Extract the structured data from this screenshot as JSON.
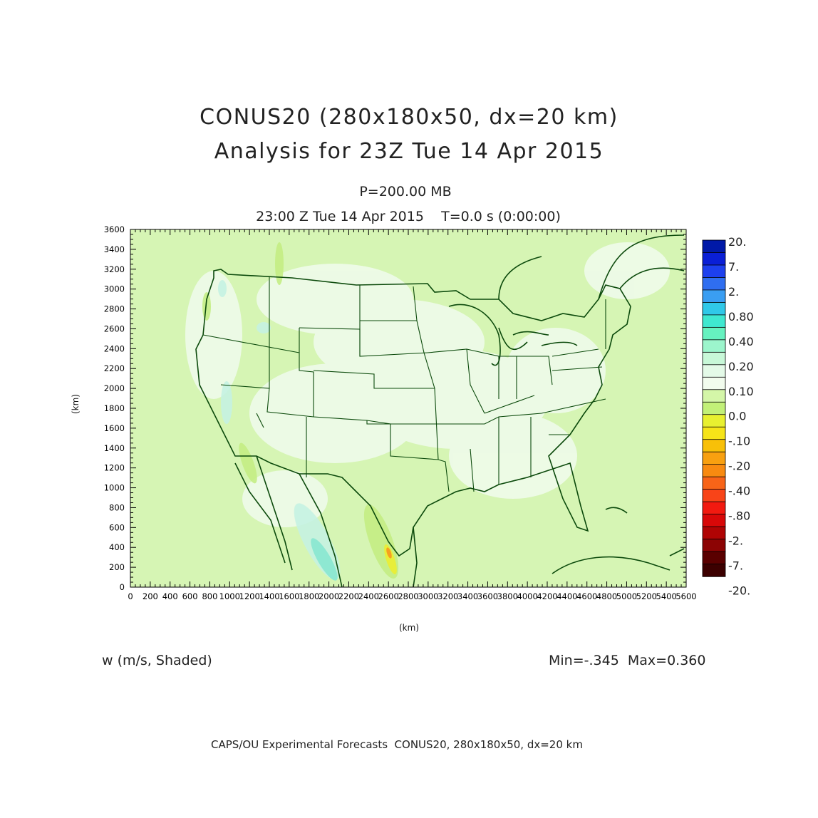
{
  "title_line1": "CONUS20 (280x180x50, dx=20 km)",
  "title_line2": "Analysis for 23Z Tue 14 Apr 2015",
  "level_label": "P=200.00 MB",
  "time_label": "23:00 Z Tue 14 Apr 2015    T=0.0 s (0:00:00)",
  "field_label": "w (m/s, Shaded)",
  "minmax_label": "Min=-.345  Max=0.360",
  "footer_label": "CAPS/OU Experimental Forecasts  CONUS20, 280x180x50, dx=20 km",
  "x_axis": {
    "label": "(km)",
    "range": [
      0,
      5600
    ],
    "ticks": [
      "0",
      "200",
      "400",
      "600",
      "800",
      "1000",
      "1200",
      "1400",
      "1600",
      "1800",
      "2000",
      "2200",
      "2400",
      "2600",
      "2800",
      "3000",
      "3200",
      "3400",
      "3600",
      "3800",
      "4000",
      "4200",
      "4400",
      "4600",
      "4800",
      "5000",
      "5200",
      "5400",
      "5600"
    ]
  },
  "y_axis": {
    "label": "(km)",
    "range": [
      0,
      3600
    ],
    "ticks": [
      "0",
      "200",
      "400",
      "600",
      "800",
      "1000",
      "1200",
      "1400",
      "1600",
      "1800",
      "2000",
      "2200",
      "2400",
      "2600",
      "2800",
      "3000",
      "3200",
      "3400",
      "3600"
    ]
  },
  "colorbar": {
    "labels": [
      "20.",
      "7.",
      "2.",
      "0.80",
      "0.40",
      "0.20",
      "0.10",
      "0.0",
      "-.10",
      "-.20",
      "-.40",
      "-.80",
      "-2.",
      "-7.",
      "-20."
    ],
    "colors": [
      "#0019a8",
      "#0a1fd6",
      "#1d40ee",
      "#2f6ef0",
      "#3a9ef2",
      "#30c8e8",
      "#3fe8d0",
      "#66f2c0",
      "#9cf5cc",
      "#c8f8d8",
      "#e4fae8",
      "#f2fcee",
      "#d4f6a8",
      "#c2f078",
      "#e8f030",
      "#f6e418",
      "#f8c008",
      "#f8a010",
      "#f88a10",
      "#f86418",
      "#f84418",
      "#f21a10",
      "#d80808",
      "#b00404",
      "#8c0404",
      "#5a0000",
      "#3c0000"
    ]
  },
  "map_colors": {
    "background": "#d6f5b4",
    "coastline": "#0c4a0c"
  }
}
